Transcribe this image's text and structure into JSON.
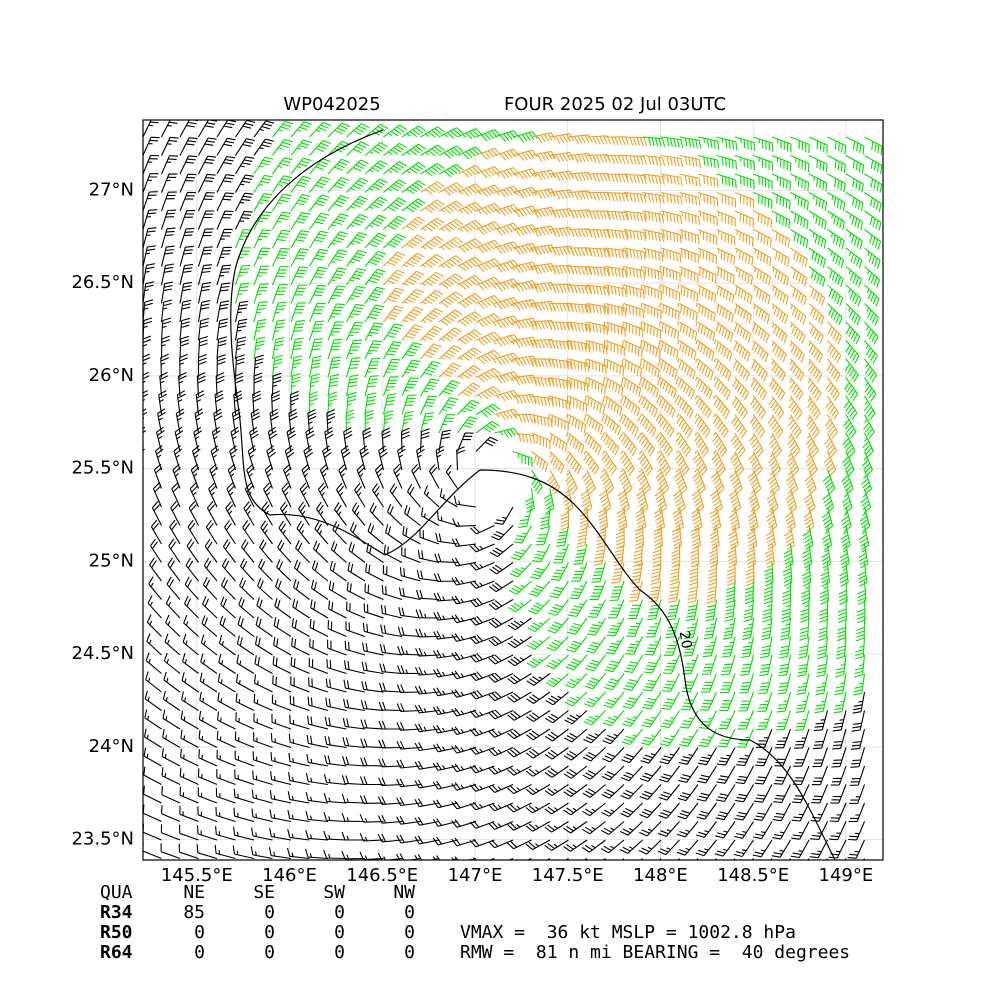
{
  "map": {
    "title_left": "WP042025",
    "title_right": "FOUR 2025 02 Jul 03UTC",
    "xlim": [
      145.21,
      149.2
    ],
    "ylim": [
      23.39,
      27.38
    ],
    "xticks": [
      {
        "value": 145.5,
        "label": "145.5°E"
      },
      {
        "value": 146,
        "label": "146°E"
      },
      {
        "value": 146.5,
        "label": "146.5°E"
      },
      {
        "value": 147,
        "label": "147°E"
      },
      {
        "value": 147.5,
        "label": "147.5°E"
      },
      {
        "value": 148,
        "label": "148°E"
      },
      {
        "value": 148.5,
        "label": "148.5°E"
      },
      {
        "value": 149,
        "label": "149°E"
      }
    ],
    "yticks": [
      {
        "value": 23.5,
        "label": "23.5°N"
      },
      {
        "value": 24,
        "label": "24°N"
      },
      {
        "value": 24.5,
        "label": "24.5°N"
      },
      {
        "value": 25,
        "label": "25°N"
      },
      {
        "value": 25.5,
        "label": "25.5°N"
      },
      {
        "value": 26,
        "label": "26°N"
      },
      {
        "value": 26.5,
        "label": "26.5°N"
      },
      {
        "value": 27,
        "label": "27°N"
      }
    ],
    "contour_label": "20"
  },
  "wind_radii": {
    "header": [
      "QUA",
      "NE",
      "SE",
      "SW",
      "NW"
    ],
    "rows": [
      [
        "R34",
        85,
        0,
        0,
        0
      ],
      [
        "R50",
        0,
        0,
        0,
        0
      ],
      [
        "R64",
        0,
        0,
        0,
        0
      ]
    ]
  },
  "summary": [
    "VMAX =  36 kt MSLP = 1002.8 hPa",
    "RMW =  81 n mi BEARING =  40 degrees"
  ]
}
